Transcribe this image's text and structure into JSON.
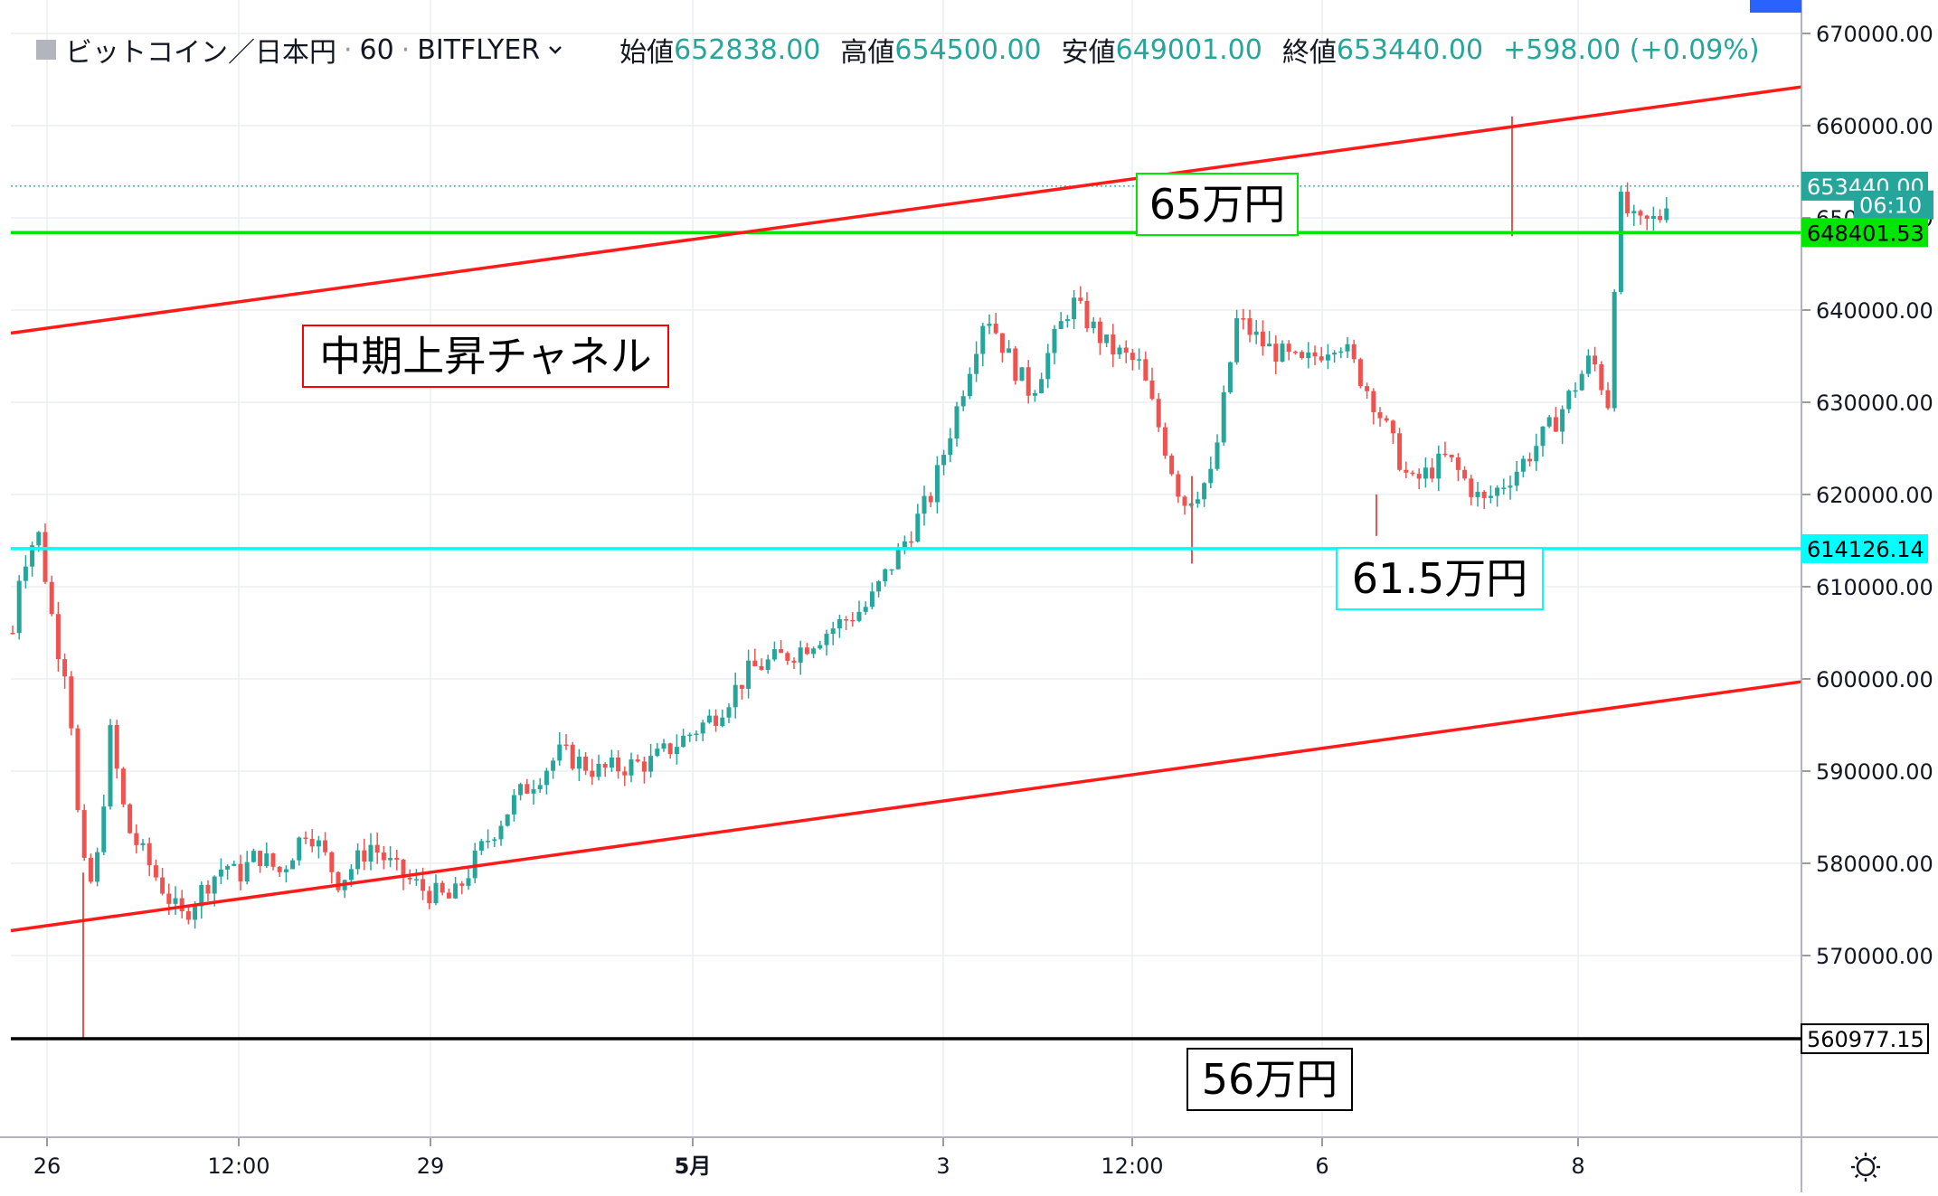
{
  "header": {
    "symbol": "ビットコイン／日本円",
    "interval": "60",
    "exchange": "BITFLYER",
    "dropdown_icon": "chevron-down-icon",
    "open_label": "始値",
    "open_value": "652838.00",
    "high_label": "高値",
    "high_value": "654500.00",
    "low_label": "安値",
    "low_value": "649001.00",
    "close_label": "終値",
    "close_value": "653440.00",
    "change": "+598.00 (+0.09%)"
  },
  "colors": {
    "up": "#26a69a",
    "down": "#ef5350",
    "channel": "#ff1a1a",
    "green_level": "#00e600",
    "cyan_level": "#00ffff",
    "black_level": "#000000",
    "grid": "#eceef2"
  },
  "settings_icon": "sun-gear-icon",
  "chart_data": {
    "type": "candlestick",
    "ylim": [
      551000,
      672000
    ],
    "y_ticks": [
      "670000.00",
      "660000.00",
      "650000.00",
      "640000.00",
      "630000.00",
      "620000.00",
      "610000.00",
      "600000.00",
      "590000.00",
      "580000.00",
      "570000.00"
    ],
    "x_ticks": [
      "26",
      "12:00",
      "29",
      "5月",
      "3",
      "12:00",
      "6",
      "8"
    ],
    "price_badges": [
      {
        "label": "653440.00",
        "value": 653440,
        "style": "teal"
      },
      {
        "label": "06:10",
        "value": 651400,
        "style": "teal"
      },
      {
        "label": "648401.53",
        "value": 648401.53,
        "style": "green"
      },
      {
        "label": "614126.14",
        "value": 614126.14,
        "style": "cyan"
      },
      {
        "label": "560977.15",
        "value": 560977.15,
        "style": "black"
      }
    ],
    "horizontal_lines": [
      {
        "value": 648401.53,
        "color": "#00e600"
      },
      {
        "value": 614126.14,
        "color": "#00ffff"
      },
      {
        "value": 560977.15,
        "color": "#000000"
      }
    ],
    "channel_lines": [
      {
        "from": [
          "26",
          637500
        ],
        "to": [
          "end",
          664200
        ]
      },
      {
        "from": [
          "26",
          572700
        ],
        "to": [
          "end",
          599700
        ]
      }
    ],
    "annotations": [
      {
        "text": "65万円",
        "border": "#00e600"
      },
      {
        "text": "中期上昇チャネル",
        "border": "#ff0000"
      },
      {
        "text": "61.5万円",
        "border": "#00ffff"
      },
      {
        "text": "56万円",
        "border": "#000000"
      }
    ],
    "anchors": [
      [
        "26",
        605000
      ],
      [
        "26",
        612000
      ],
      [
        "26",
        616000
      ],
      [
        "26",
        604000
      ],
      [
        "26",
        600000
      ],
      [
        "26",
        587000
      ],
      [
        "26",
        577000
      ],
      [
        "26",
        579000
      ],
      [
        "26",
        594000
      ],
      [
        "26",
        584000
      ],
      [
        "26",
        579000
      ],
      [
        "26",
        574000
      ],
      [
        "26",
        578000
      ],
      [
        "26",
        580000
      ],
      [
        "12:00",
        578500
      ],
      [
        "12:00",
        581000
      ],
      [
        "12:00",
        579000
      ],
      [
        "29",
        584000
      ],
      [
        "29",
        578000
      ],
      [
        "29",
        582000
      ],
      [
        "29",
        579000
      ],
      [
        "29",
        577000
      ],
      [
        "29",
        576000
      ],
      [
        "5月",
        582000
      ],
      [
        "5月",
        587000
      ],
      [
        "5月",
        592000
      ],
      [
        "5月",
        590000
      ],
      [
        "5月",
        591000
      ],
      [
        "5月",
        596000
      ],
      [
        "5月",
        601000
      ],
      [
        "3",
        603000
      ],
      [
        "3",
        608000
      ],
      [
        "3",
        620000
      ],
      [
        "3",
        640000
      ],
      [
        "3",
        634000
      ],
      [
        "3",
        631000
      ],
      [
        "12:00",
        641000
      ],
      [
        "12:00",
        636000
      ],
      [
        "12:00",
        634000
      ],
      [
        "12:00",
        619000
      ],
      [
        "12:00",
        622000
      ],
      [
        "12:00",
        639000
      ],
      [
        "6",
        636000
      ],
      [
        "6",
        634000
      ],
      [
        "6",
        637000
      ],
      [
        "6",
        630000
      ],
      [
        "6",
        621000
      ],
      [
        "6",
        624000
      ],
      [
        "6",
        619000
      ],
      [
        "6",
        623000
      ],
      [
        "6",
        628000
      ],
      [
        "6",
        635000
      ],
      [
        "6",
        630000
      ],
      [
        "8",
        652000
      ],
      [
        "8",
        649000
      ],
      [
        "8",
        650000
      ],
      [
        "8",
        653440
      ]
    ]
  }
}
